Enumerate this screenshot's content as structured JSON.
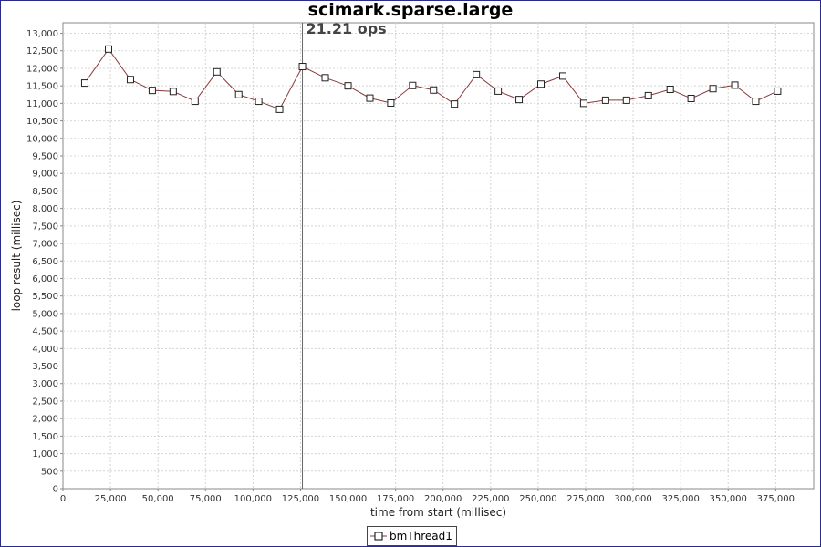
{
  "chart_data": {
    "type": "line",
    "title": "scimark.sparse.large",
    "xlabel": "time from start (millisec)",
    "ylabel": "loop result (millisec)",
    "xlim": [
      0,
      395000
    ],
    "ylim": [
      0,
      13300
    ],
    "x_ticks": [
      0,
      25000,
      50000,
      75000,
      100000,
      125000,
      150000,
      175000,
      200000,
      225000,
      250000,
      275000,
      300000,
      325000,
      350000,
      375000
    ],
    "x_tick_labels": [
      "0",
      "25,000",
      "50,000",
      "75,000",
      "100,000",
      "125,000",
      "150,000",
      "175,000",
      "200,000",
      "225,000",
      "250,000",
      "275,000",
      "300,000",
      "325,000",
      "350,000",
      "375,000"
    ],
    "y_ticks": [
      0,
      500,
      1000,
      1500,
      2000,
      2500,
      3000,
      3500,
      4000,
      4500,
      5000,
      5500,
      6000,
      6500,
      7000,
      7500,
      8000,
      8500,
      9000,
      9500,
      10000,
      10500,
      11000,
      11500,
      12000,
      12500,
      13000
    ],
    "y_tick_labels": [
      "0",
      "500",
      "1,000",
      "1,500",
      "2,000",
      "2,500",
      "3,000",
      "3,500",
      "4,000",
      "4,500",
      "5,000",
      "5,500",
      "6,000",
      "6,500",
      "7,000",
      "7,500",
      "8,000",
      "8,500",
      "9,000",
      "9,500",
      "10,000",
      "10,500",
      "11,000",
      "11,500",
      "12,000",
      "12,500",
      "13,000"
    ],
    "grid": true,
    "legend_position": "bottom-center",
    "annotation": {
      "text": "21.21 ops",
      "x": 126000
    },
    "series": [
      {
        "name": "bmThread1",
        "color": "#8b3a3a",
        "marker": "square",
        "x": [
          11500,
          24000,
          35500,
          47000,
          58000,
          69500,
          81000,
          92500,
          103000,
          114000,
          126000,
          138000,
          150000,
          161500,
          172500,
          184000,
          195000,
          206000,
          217500,
          229000,
          240000,
          251500,
          263000,
          274000,
          285500,
          296500,
          308000,
          319500,
          330500,
          342000,
          353500,
          364500,
          376000
        ],
        "values": [
          11580,
          12550,
          11680,
          11370,
          11340,
          11060,
          11900,
          11250,
          11060,
          10830,
          12050,
          11730,
          11500,
          11150,
          11010,
          11510,
          11380,
          10980,
          11820,
          11350,
          11110,
          11550,
          11780,
          11000,
          11090,
          11090,
          11220,
          11400,
          11140,
          11420,
          11520,
          11060,
          11350
        ]
      }
    ]
  }
}
